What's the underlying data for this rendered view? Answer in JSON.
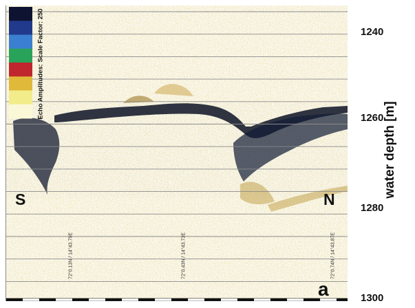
{
  "figure": {
    "panel_letter": "a",
    "y_axis_title": "water depth [m]",
    "depth_ticks": [
      "1240",
      "1260",
      "1280",
      "1300"
    ],
    "directions": {
      "left": "S",
      "right": "N"
    },
    "color_scale": {
      "title": "Echo Amplitudes: Scale Factor: 250",
      "colors": [
        "#0d1330",
        "#223a8c",
        "#3a7fd0",
        "#2aa35a",
        "#c0262d",
        "#e0b93a",
        "#f3ec8a",
        "#fbf8d8"
      ]
    },
    "coordinates": [
      "72°0.13N / 14°43.79E",
      "72°0.43N / 14°43.73E",
      "72°0.74N / 14°43.87E"
    ]
  }
}
